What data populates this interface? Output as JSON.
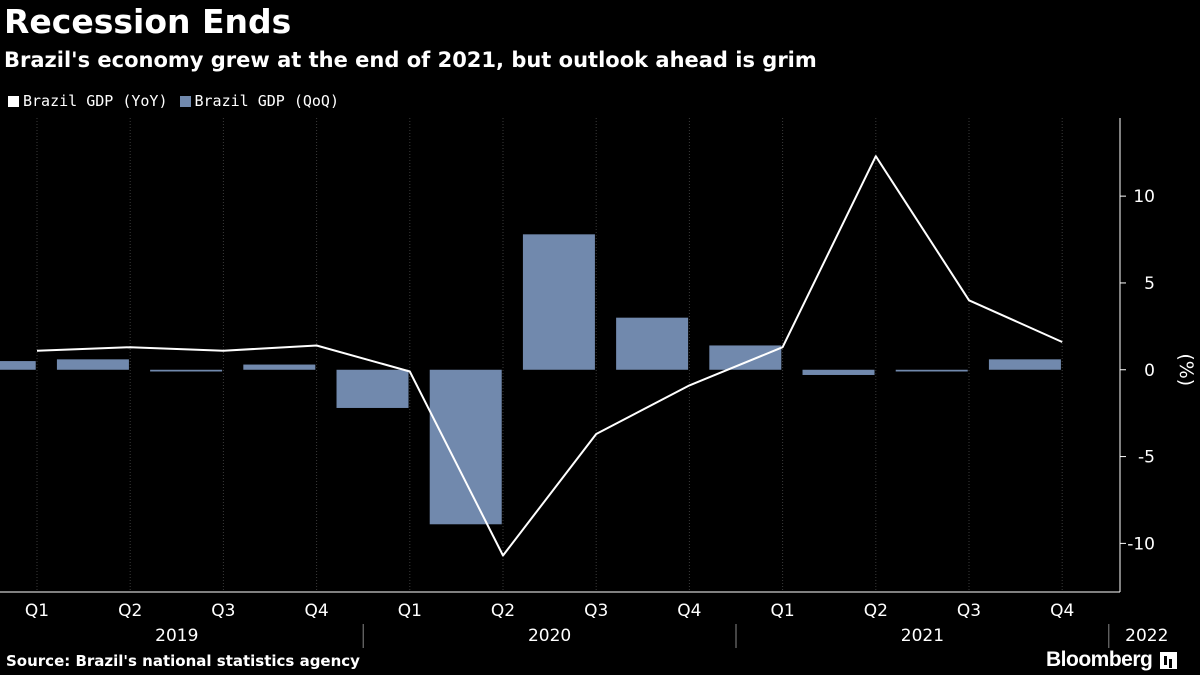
{
  "chart_data": {
    "type": "bar",
    "title": "Recession Ends",
    "subtitle": "Brazil's economy grew at the end of 2021, but outlook ahead is grim",
    "ylabel": "(%)",
    "ylim": [
      -12.8,
      14.5
    ],
    "yticks": [
      10,
      5,
      0,
      -5,
      -10
    ],
    "ytick_labels": [
      "10",
      "5",
      "0",
      "-5",
      "-10"
    ],
    "categories": [
      "Q1",
      "Q2",
      "Q3",
      "Q4",
      "Q1",
      "Q2",
      "Q3",
      "Q4",
      "Q1",
      "Q2",
      "Q3",
      "Q4"
    ],
    "year_groups": [
      {
        "label": "2019",
        "start": 0,
        "end": 3
      },
      {
        "label": "2020",
        "start": 4,
        "end": 7
      },
      {
        "label": "2021",
        "start": 8,
        "end": 11
      },
      {
        "label": "2022",
        "start": 12,
        "end": 12
      }
    ],
    "grid": "vertical",
    "legend_position": "top-left",
    "series": [
      {
        "name": "Brazil GDP (YoY)",
        "type": "line",
        "color": "#ffffff",
        "x": [
          0,
          1,
          2,
          3,
          4,
          5,
          6,
          7,
          8,
          9,
          10,
          11
        ],
        "values": [
          1.1,
          1.3,
          1.1,
          1.4,
          -0.1,
          -10.7,
          -3.7,
          -0.9,
          1.3,
          12.3,
          4.0,
          1.6
        ]
      },
      {
        "name": "Brazil GDP (QoQ)",
        "type": "bar",
        "color": "#7189ad",
        "x": [
          -0.4,
          0.6,
          1.6,
          2.6,
          3.6,
          4.6,
          5.6,
          6.6,
          7.6,
          8.6,
          9.6,
          10.6
        ],
        "values": [
          0.5,
          0.6,
          -0.1,
          0.3,
          -2.2,
          -8.9,
          7.8,
          3.0,
          1.4,
          -0.3,
          -0.1,
          0.6
        ]
      }
    ]
  },
  "footer": {
    "source": "Source: Brazil's national statistics agency",
    "brand": "Bloomberg",
    "brand_icon": "bloomberg-terminal-icon"
  }
}
